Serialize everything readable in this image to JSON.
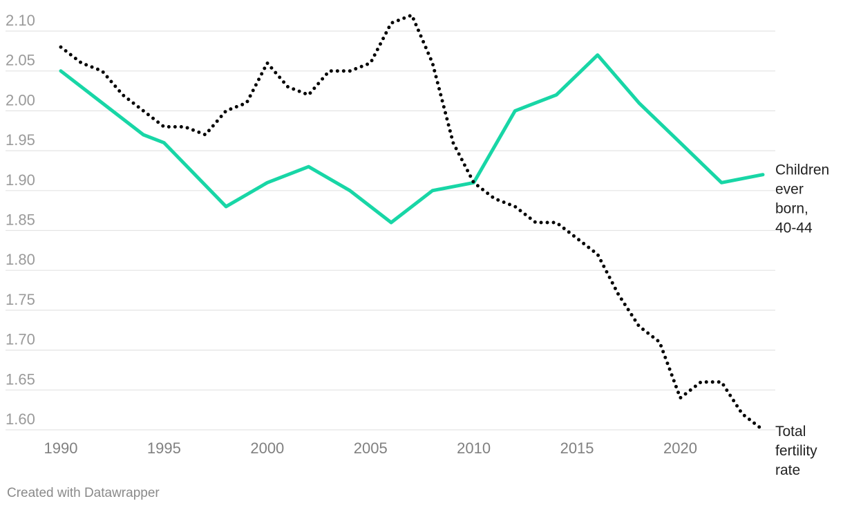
{
  "chart_data": {
    "type": "line",
    "ylim": [
      1.6,
      2.1
    ],
    "yticks": [
      "1.60",
      "1.65",
      "1.70",
      "1.75",
      "1.80",
      "1.85",
      "1.90",
      "1.95",
      "2.00",
      "2.05",
      "2.10"
    ],
    "xlim": [
      1990,
      2024
    ],
    "xticks": [
      "1990",
      "1995",
      "2000",
      "2005",
      "2010",
      "2015",
      "2020"
    ],
    "grid": true,
    "series": [
      {
        "name": "Children ever born, 40-44",
        "label_lines": [
          "Children",
          "ever",
          "born,",
          "40-44"
        ],
        "color": "#18d6a6",
        "style": "solid",
        "x": [
          1990,
          1994,
          1995,
          1998,
          2000,
          2002,
          2004,
          2006,
          2008,
          2010,
          2012,
          2014,
          2016,
          2018,
          2020,
          2022,
          2024
        ],
        "values": [
          2.05,
          1.97,
          1.96,
          1.88,
          1.91,
          1.93,
          1.9,
          1.86,
          1.9,
          1.91,
          2.0,
          2.02,
          2.07,
          2.01,
          1.96,
          1.91,
          1.92
        ]
      },
      {
        "name": "Total fertility rate",
        "label_lines": [
          "Total",
          "fertility",
          "rate"
        ],
        "color": "#000000",
        "style": "dotted",
        "x": [
          1990,
          1991,
          1992,
          1993,
          1994,
          1995,
          1996,
          1997,
          1998,
          1999,
          2000,
          2001,
          2002,
          2003,
          2004,
          2005,
          2006,
          2007,
          2008,
          2009,
          2010,
          2011,
          2012,
          2013,
          2014,
          2015,
          2016,
          2017,
          2018,
          2019,
          2020,
          2021,
          2022,
          2023,
          2024
        ],
        "values": [
          2.08,
          2.06,
          2.05,
          2.02,
          2.0,
          1.98,
          1.98,
          1.97,
          2.0,
          2.01,
          2.06,
          2.03,
          2.02,
          2.05,
          2.05,
          2.06,
          2.11,
          2.12,
          2.06,
          1.96,
          1.91,
          1.89,
          1.88,
          1.86,
          1.86,
          1.84,
          1.82,
          1.77,
          1.73,
          1.71,
          1.64,
          1.66,
          1.66,
          1.62,
          1.6
        ]
      }
    ]
  },
  "footer": {
    "credit": "Created with Datawrapper"
  }
}
